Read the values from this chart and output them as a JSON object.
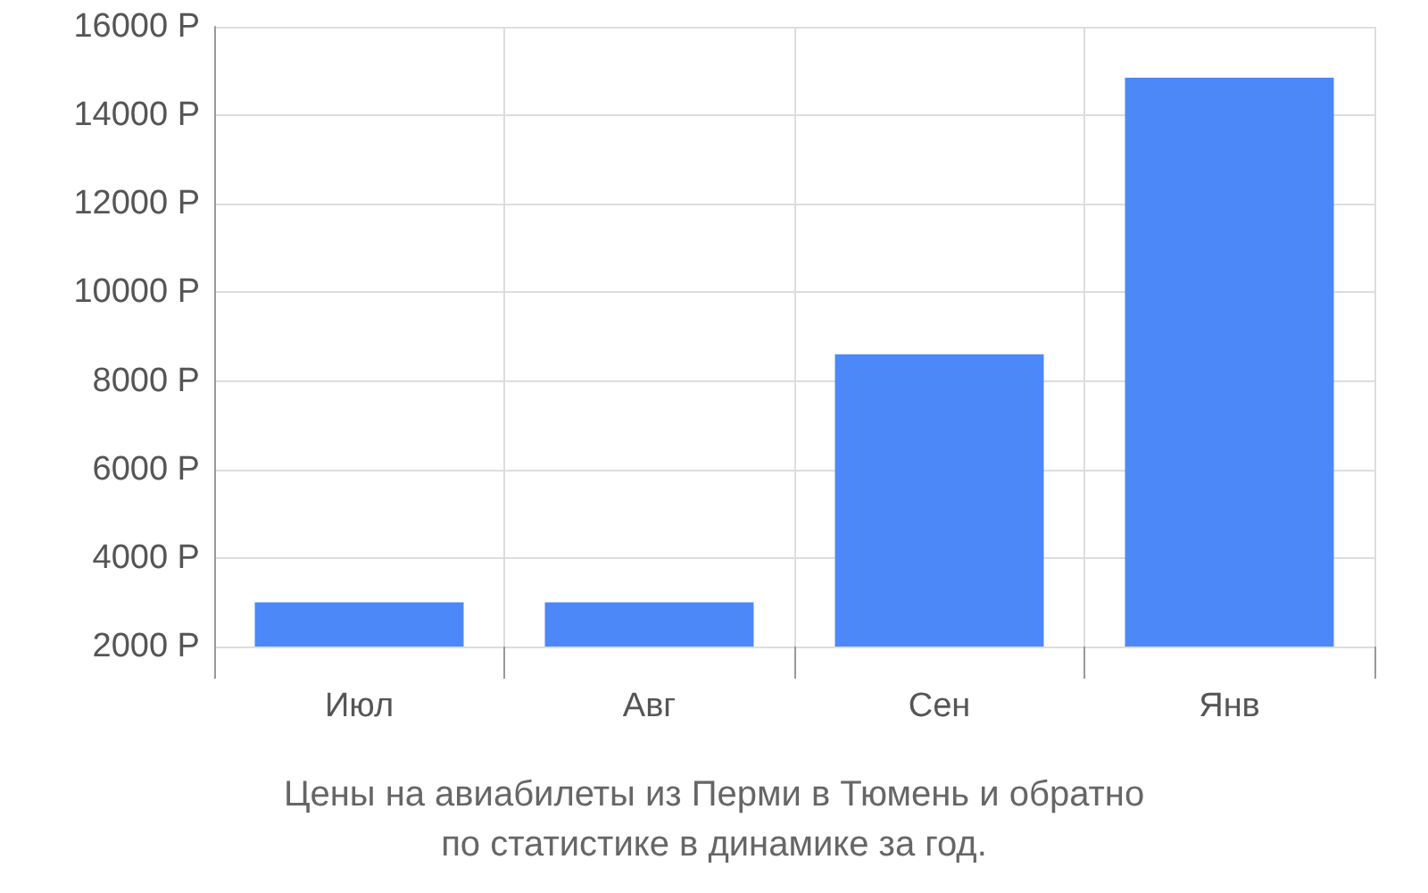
{
  "chart_data": {
    "type": "bar",
    "title": "Цены на авиабилеты из Перми в Тюмень и обратно\nпо статистике в динамике за год.",
    "categories": [
      "Июл",
      "Авг",
      "Сен",
      "Янв"
    ],
    "values": [
      3000,
      3000,
      8600,
      14850
    ],
    "color": "#4d88f9",
    "ylim": [
      2000,
      16000
    ],
    "yticks": [
      {
        "value": 2000,
        "label": "2000 Р"
      },
      {
        "value": 4000,
        "label": "4000 Р"
      },
      {
        "value": 6000,
        "label": "6000 Р"
      },
      {
        "value": 8000,
        "label": "8000 Р"
      },
      {
        "value": 10000,
        "label": "10000 Р"
      },
      {
        "value": 12000,
        "label": "12000 Р"
      },
      {
        "value": 14000,
        "label": "14000 Р"
      },
      {
        "value": 16000,
        "label": "16000 Р"
      }
    ],
    "grid": true
  }
}
